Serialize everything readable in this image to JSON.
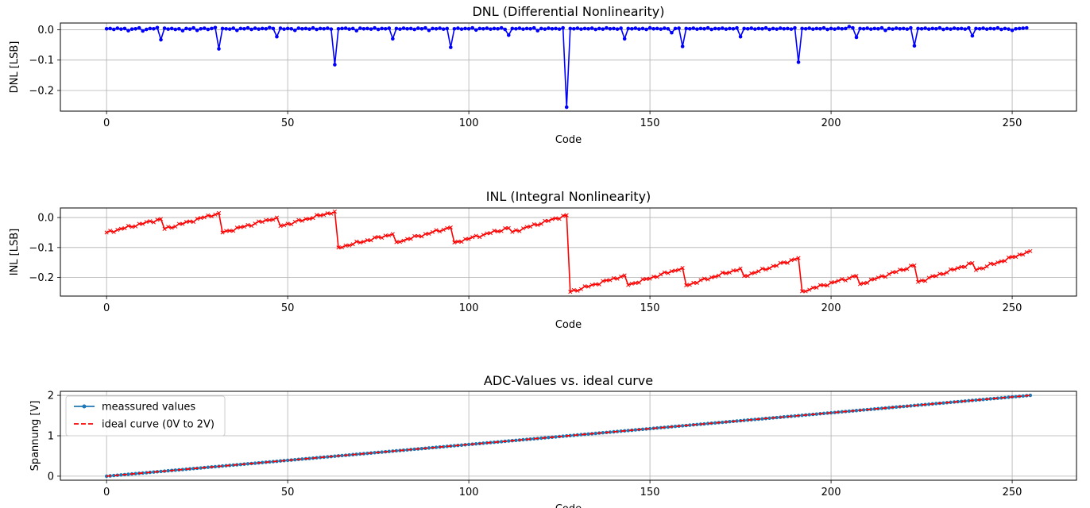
{
  "chart_data": [
    {
      "type": "line",
      "title": "DNL (Differential Nonlinearity)",
      "xlabel": "Code",
      "ylabel": "DNL [LSB]",
      "xlim": [
        -12.75,
        267.75
      ],
      "ylim": [
        -0.268,
        0.022
      ],
      "xticks": [
        0,
        50,
        100,
        150,
        200,
        250
      ],
      "yticks": [
        0.0,
        -0.1,
        -0.2
      ],
      "xtick_labels": [
        "0",
        "50",
        "100",
        "150",
        "200",
        "250"
      ],
      "ytick_labels": [
        "0.0",
        "−0.1",
        "−0.2"
      ],
      "grid": true,
      "series": [
        {
          "color": "#0000ff",
          "marker": "dot",
          "x_start": 0,
          "x_step": 1,
          "values": [
            0.003,
            0.004,
            0.001,
            0.005,
            0.002,
            0.004,
            -0.003,
            0.002,
            0.003,
            0.006,
            -0.004,
            0.001,
            0.004,
            0.003,
            0.007,
            -0.033,
            0.005,
            0.002,
            0.004,
            0.001,
            0.003,
            -0.003,
            0.004,
            0.002,
            0.006,
            -0.002,
            0.003,
            0.005,
            0.001,
            0.004,
            0.007,
            -0.063,
            0.004,
            0.003,
            0.002,
            0.005,
            -0.002,
            0.004,
            0.003,
            0.006,
            0.001,
            0.005,
            0.002,
            0.004,
            0.003,
            0.007,
            0.004,
            -0.023,
            0.005,
            0.002,
            0.004,
            0.003,
            -0.002,
            0.005,
            0.003,
            0.004,
            0.002,
            0.006,
            0.001,
            0.004,
            0.003,
            0.005,
            0.002,
            -0.115,
            0.003,
            0.004,
            0.005,
            0.002,
            0.004,
            -0.003,
            0.005,
            0.003,
            0.004,
            0.002,
            0.006,
            0.001,
            0.004,
            0.003,
            0.005,
            -0.03,
            0.004,
            0.002,
            0.005,
            0.003,
            0.004,
            0.001,
            0.005,
            0.003,
            0.006,
            -0.002,
            0.004,
            0.003,
            0.005,
            0.002,
            0.004,
            -0.058,
            0.003,
            0.005,
            0.002,
            0.004,
            0.003,
            0.006,
            -0.001,
            0.004,
            0.003,
            0.005,
            0.002,
            0.004,
            0.003,
            0.006,
            0.001,
            -0.018,
            0.004,
            0.003,
            0.005,
            0.002,
            0.004,
            0.003,
            0.006,
            -0.003,
            0.004,
            0.002,
            0.005,
            0.003,
            0.004,
            0.002,
            0.006,
            -0.255,
            0.004,
            0.003,
            0.005,
            0.002,
            0.004,
            0.003,
            0.005,
            0.001,
            0.004,
            0.002,
            0.006,
            0.003,
            0.004,
            0.002,
            0.005,
            -0.03,
            0.004,
            0.003,
            0.005,
            0.002,
            0.004,
            0.001,
            0.006,
            0.003,
            0.004,
            0.002,
            0.005,
            0.003,
            -0.01,
            0.004,
            0.005,
            -0.055,
            0.004,
            0.003,
            0.005,
            0.002,
            0.004,
            0.003,
            0.006,
            0.001,
            0.004,
            0.003,
            0.005,
            0.002,
            0.004,
            0.003,
            0.006,
            -0.023,
            0.004,
            0.003,
            0.005,
            0.002,
            0.004,
            0.003,
            0.006,
            0.001,
            0.004,
            0.002,
            0.005,
            0.003,
            0.004,
            0.002,
            0.006,
            -0.107,
            0.004,
            0.003,
            0.005,
            0.002,
            0.004,
            0.003,
            0.006,
            0.001,
            0.004,
            0.002,
            0.005,
            0.003,
            0.004,
            0.01,
            0.006,
            -0.025,
            0.004,
            0.003,
            0.005,
            0.002,
            0.004,
            0.003,
            0.006,
            -0.002,
            0.004,
            0.002,
            0.005,
            0.003,
            0.004,
            0.002,
            0.006,
            -0.053,
            0.004,
            0.003,
            0.005,
            0.002,
            0.004,
            0.003,
            0.006,
            0.001,
            0.004,
            0.002,
            0.005,
            0.003,
            0.004,
            0.002,
            0.006,
            -0.02,
            0.004,
            0.003,
            0.005,
            0.002,
            0.004,
            0.003,
            0.006,
            0.001,
            0.004,
            0.002,
            -0.002,
            0.003,
            0.004,
            0.005,
            0.006
          ]
        }
      ]
    },
    {
      "type": "line",
      "title": "INL (Integral Nonlinearity)",
      "xlabel": "Code",
      "ylabel": "INL [LSB]",
      "xlim": [
        -12.75,
        267.75
      ],
      "ylim": [
        -0.262,
        0.032
      ],
      "xticks": [
        0,
        50,
        100,
        150,
        200,
        250
      ],
      "yticks": [
        0.0,
        -0.1,
        -0.2
      ],
      "xtick_labels": [
        "0",
        "50",
        "100",
        "150",
        "200",
        "250"
      ],
      "ytick_labels": [
        "0.0",
        "−0.1",
        "−0.2"
      ],
      "grid": true,
      "series": [
        {
          "color": "#ff0000",
          "marker": "x",
          "knots": [
            [
              0,
              -0.05
            ],
            [
              15,
              -0.005
            ],
            [
              16,
              -0.038
            ],
            [
              31,
              0.015
            ],
            [
              32,
              -0.05
            ],
            [
              47,
              0.0
            ],
            [
              48,
              -0.028
            ],
            [
              63,
              0.02
            ],
            [
              64,
              -0.1
            ],
            [
              79,
              -0.055
            ],
            [
              80,
              -0.082
            ],
            [
              95,
              -0.033
            ],
            [
              96,
              -0.083
            ],
            [
              111,
              -0.035
            ],
            [
              112,
              -0.048
            ],
            [
              127,
              0.008
            ],
            [
              128,
              -0.248
            ],
            [
              143,
              -0.193
            ],
            [
              144,
              -0.225
            ],
            [
              159,
              -0.168
            ],
            [
              160,
              -0.226
            ],
            [
              175,
              -0.17
            ],
            [
              176,
              -0.195
            ],
            [
              191,
              -0.135
            ],
            [
              192,
              -0.246
            ],
            [
              207,
              -0.195
            ],
            [
              208,
              -0.222
            ],
            [
              223,
              -0.16
            ],
            [
              224,
              -0.215
            ],
            [
              239,
              -0.152
            ],
            [
              240,
              -0.175
            ],
            [
              255,
              -0.112
            ]
          ]
        }
      ]
    },
    {
      "type": "line",
      "title": "ADC-Values vs. ideal curve",
      "xlabel": "Code",
      "ylabel": "Spannung [V]",
      "xlim": [
        -12.75,
        267.75
      ],
      "ylim": [
        -0.1,
        2.1
      ],
      "xticks": [
        0,
        50,
        100,
        150,
        200,
        250
      ],
      "yticks": [
        0,
        1,
        2
      ],
      "xtick_labels": [
        "0",
        "50",
        "100",
        "150",
        "200",
        "250"
      ],
      "ytick_labels": [
        "0",
        "1",
        "2"
      ],
      "grid": true,
      "legend": "top-left",
      "series": [
        {
          "name": "meassured values",
          "color": "#1f77b4",
          "marker": "dot",
          "style": "solid",
          "x": [
            0,
            255
          ],
          "y": [
            0,
            2
          ]
        },
        {
          "name": "ideal curve (0V to 2V)",
          "color": "#ff0000",
          "marker": "none",
          "style": "dashed",
          "x": [
            0,
            255
          ],
          "y": [
            0,
            2
          ]
        }
      ]
    }
  ]
}
